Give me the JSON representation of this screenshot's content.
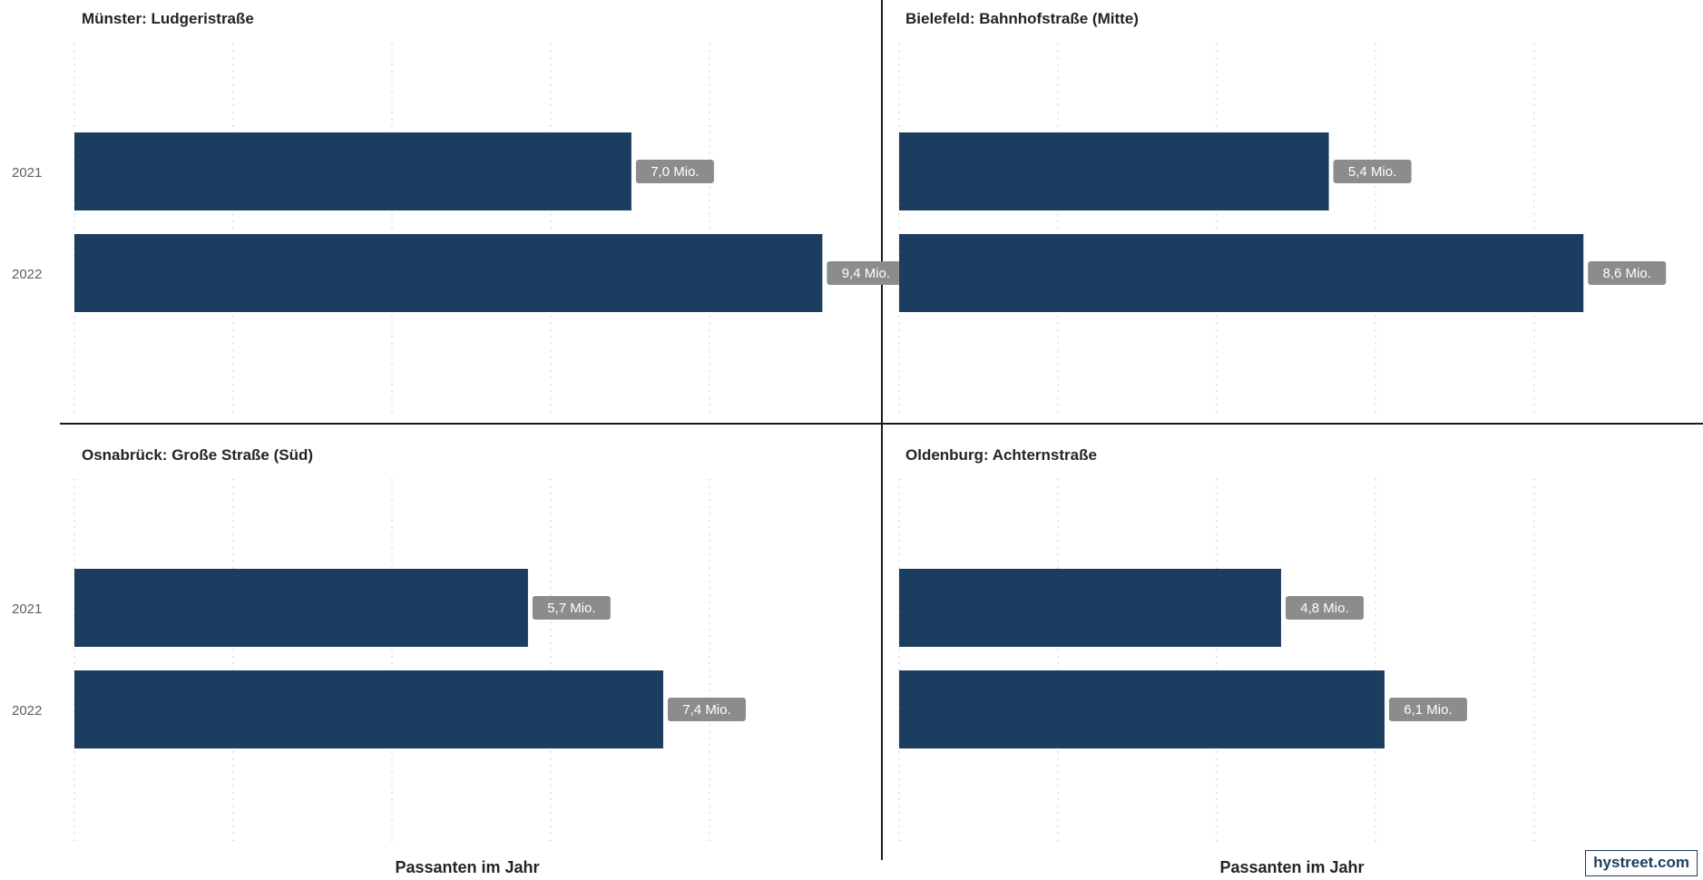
{
  "x_axis_label": "Passanten im Jahr",
  "brand": "hystreet.com",
  "colors": {
    "bar": "#1b3d5f",
    "label_bg": "#8c8c8c",
    "label_bg_inside": "#1e2c3a",
    "divider": "#1a1a1a",
    "grid": "#c8c8c8"
  },
  "chart_data": [
    {
      "type": "bar",
      "orientation": "horizontal",
      "title": "Münster: Ludgeristraße",
      "categories": [
        "2021",
        "2022"
      ],
      "values": [
        7.0,
        9.4
      ],
      "value_labels": [
        "7,0 Mio.",
        "9,4 Mio."
      ],
      "xlabel": "",
      "ylabel": "",
      "xlim": [
        0,
        10
      ],
      "grid": true
    },
    {
      "type": "bar",
      "orientation": "horizontal",
      "title": "Bielefeld: Bahnhofstraße (Mitte)",
      "categories": [
        "2021",
        "2022"
      ],
      "values": [
        5.4,
        8.6
      ],
      "value_labels": [
        "5,4 Mio.",
        "8,6 Mio."
      ],
      "xlabel": "",
      "ylabel": "",
      "xlim": [
        0,
        10
      ],
      "grid": true
    },
    {
      "type": "bar",
      "orientation": "horizontal",
      "title": "Osnabrück: Große Straße (Süd)",
      "categories": [
        "2021",
        "2022"
      ],
      "values": [
        5.7,
        7.4
      ],
      "value_labels": [
        "5,7 Mio.",
        "7,4 Mio."
      ],
      "xlabel": "Passanten im Jahr",
      "ylabel": "",
      "xlim": [
        0,
        10
      ],
      "grid": true
    },
    {
      "type": "bar",
      "orientation": "horizontal",
      "title": "Oldenburg: Achternstraße",
      "categories": [
        "2021",
        "2022"
      ],
      "values": [
        4.8,
        6.1
      ],
      "value_labels": [
        "4,8 Mio.",
        "6,1 Mio."
      ],
      "xlabel": "Passanten im Jahr",
      "ylabel": "",
      "xlim": [
        0,
        10
      ],
      "grid": true
    }
  ]
}
